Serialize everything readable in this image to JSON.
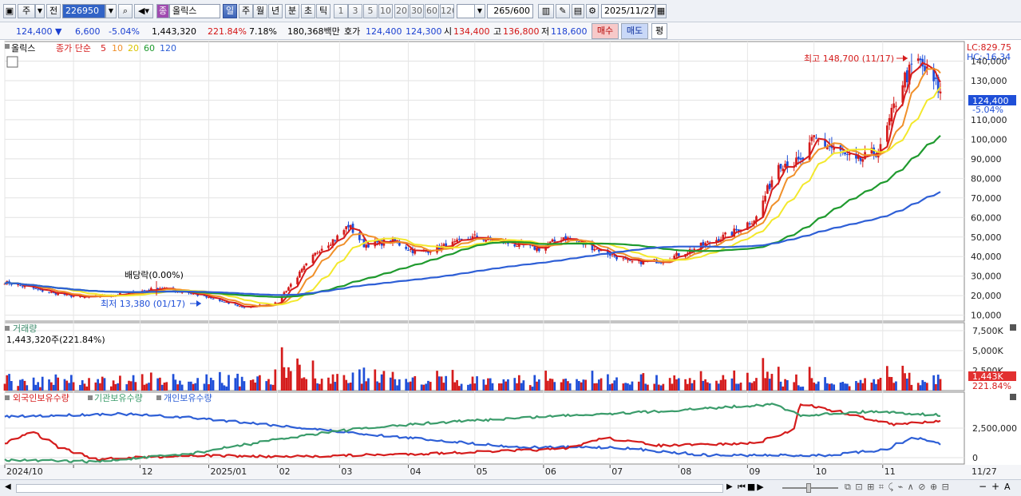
{
  "toolbar": {
    "market": "주",
    "prev_label": "전",
    "code": "226950",
    "name_badge": "종",
    "name": "올릭스",
    "period_tabs": [
      "일",
      "주",
      "월",
      "년",
      "분",
      "초",
      "틱"
    ],
    "active_period": "일",
    "intervals": [
      "1",
      "3",
      "5",
      "10",
      "20",
      "30",
      "60",
      "120"
    ],
    "count": "265",
    "count_total": "/600",
    "date": "2025/11/27"
  },
  "quote": {
    "price": "124,400",
    "change": "6,600",
    "change_pct": "-5.04%",
    "volume": "1,443,320",
    "volume_ratio": "221.84%",
    "turnover": "7.18%",
    "amount": "180,368백만",
    "bid_label": "호가",
    "ask_price": "124,400",
    "bid_price": "124,300",
    "open_label": "시",
    "open": "134,400",
    "high_label": "고",
    "high": "136,800",
    "low_label": "저",
    "low": "118,600",
    "buy_label": "매수",
    "sell_label": "매도",
    "avg_label": "평"
  },
  "colors": {
    "up": "#d51c1c",
    "down": "#1f4fd8",
    "ma5": "#d51c1c",
    "ma10": "#f0902a",
    "ma20": "#f3e82c",
    "ma60": "#1f9a2e",
    "ma120": "#2e5fd6",
    "foreign": "#d51c1c",
    "institution": "#3b9c6b",
    "individual": "#2e5fd6"
  },
  "chart_data": [
    {
      "type": "candlestick",
      "title": "올릭스",
      "legend": {
        "label": "종가 단순",
        "periods": [
          "5",
          "10",
          "20",
          "60",
          "120"
        ]
      },
      "lc_label": "LC:829.75",
      "hc_label": "HC:-16.34",
      "ylim": [
        7000,
        150000
      ],
      "y_ticks": [
        10000,
        20000,
        30000,
        40000,
        50000,
        60000,
        70000,
        80000,
        90000,
        100000,
        110000,
        120000,
        130000,
        140000
      ],
      "y_tick_labels": [
        "10,000",
        "20,000",
        "30,000",
        "40,000",
        "50,000",
        "60,000",
        "70,000",
        "80,000",
        "90,000",
        "100,000",
        "110,000",
        "120,000",
        "130,000",
        "140,000"
      ],
      "x_labels": [
        "2024/10",
        "12",
        "2025/01",
        "02",
        "03",
        "04",
        "05",
        "06",
        "07",
        "08",
        "09",
        "10",
        "11",
        "11/27"
      ],
      "last_price_label": "124,400",
      "last_change_label": "-5.04%",
      "annotations": {
        "high": "최고 148,700 (11/17)",
        "low": "최저 13,380 (01/17)",
        "dividend": "배당락(0.00%)"
      },
      "close_anchors": [
        [
          "2024/10/01",
          27000
        ],
        [
          "2024/10/20",
          22000
        ],
        [
          "2024/11/05",
          19000
        ],
        [
          "2024/11/25",
          21000
        ],
        [
          "2024/12/10",
          24000
        ],
        [
          "2024/12/25",
          21000
        ],
        [
          "2025/01/10",
          16000
        ],
        [
          "2025/01/17",
          14000
        ],
        [
          "2025/01/31",
          16000
        ],
        [
          "2025/02/10",
          30000
        ],
        [
          "2025/02/20",
          44000
        ],
        [
          "2025/02/28",
          50000
        ],
        [
          "2025/03/05",
          56000
        ],
        [
          "2025/03/12",
          46000
        ],
        [
          "2025/03/25",
          48000
        ],
        [
          "2025/04/05",
          42000
        ],
        [
          "2025/04/20",
          46000
        ],
        [
          "2025/05/01",
          50000
        ],
        [
          "2025/05/15",
          47000
        ],
        [
          "2025/05/30",
          44000
        ],
        [
          "2025/06/10",
          50000
        ],
        [
          "2025/06/25",
          44000
        ],
        [
          "2025/07/10",
          37000
        ],
        [
          "2025/07/25",
          38000
        ],
        [
          "2025/08/10",
          45000
        ],
        [
          "2025/08/25",
          52000
        ],
        [
          "2025/09/05",
          60000
        ],
        [
          "2025/09/15",
          88000
        ],
        [
          "2025/09/25",
          88000
        ],
        [
          "2025/10/01",
          100000
        ],
        [
          "2025/10/10",
          95000
        ],
        [
          "2025/10/20",
          88000
        ],
        [
          "2025/10/31",
          95000
        ],
        [
          "2025/11/10",
          130000
        ],
        [
          "2025/11/17",
          140000
        ],
        [
          "2025/11/27",
          124400
        ]
      ]
    },
    {
      "type": "bar",
      "title": "거래량",
      "current_label": "1,443,320주(221.84%)",
      "ylim": [
        0,
        8500
      ],
      "y_ticks": [
        2500,
        5000,
        7500
      ],
      "y_tick_labels": [
        "2,500K",
        "5,000K",
        "7,500K"
      ],
      "last_value_label": "1,443K",
      "last_ratio_label": "221.84%"
    },
    {
      "type": "line",
      "series_names": [
        "외국인보유수량",
        "기관보유수량",
        "개인보유수량"
      ],
      "y_ticks": [
        0,
        2500000
      ],
      "y_tick_labels": [
        "0",
        "2,500,000"
      ]
    }
  ]
}
